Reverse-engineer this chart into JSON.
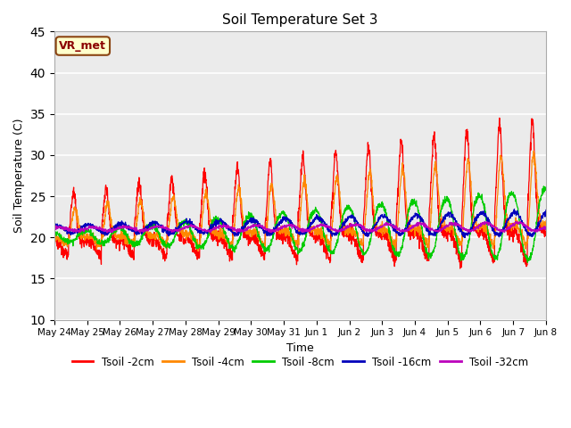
{
  "title": "Soil Temperature Set 3",
  "xlabel": "Time",
  "ylabel": "Soil Temperature (C)",
  "ylim": [
    10,
    45
  ],
  "yticks": [
    10,
    15,
    20,
    25,
    30,
    35,
    40,
    45
  ],
  "background_color": "#ffffff",
  "plot_bg_color": "#ebebeb",
  "annotation": "VR_met",
  "annotation_color": "#8B0000",
  "annotation_bg": "#ffffcc",
  "annotation_border": "#8B4513",
  "series": [
    {
      "label": "Tsoil -2cm",
      "color": "#ff0000"
    },
    {
      "label": "Tsoil -4cm",
      "color": "#ff8800"
    },
    {
      "label": "Tsoil -8cm",
      "color": "#00cc00"
    },
    {
      "label": "Tsoil -16cm",
      "color": "#0000bb"
    },
    {
      "label": "Tsoil -32cm",
      "color": "#bb00bb"
    }
  ],
  "x_tick_labels": [
    "May 24",
    "May 25",
    "May 26",
    "May 27",
    "May 28",
    "May 29",
    "May 30",
    "May 31",
    "Jun 1",
    "Jun 2",
    "Jun 3",
    "Jun 4",
    "Jun 5",
    "Jun 6",
    "Jun 7",
    "Jun 8"
  ],
  "n_days": 15,
  "ppd": 144,
  "grid_color": "#ffffff",
  "spine_color": "#aaaaaa"
}
